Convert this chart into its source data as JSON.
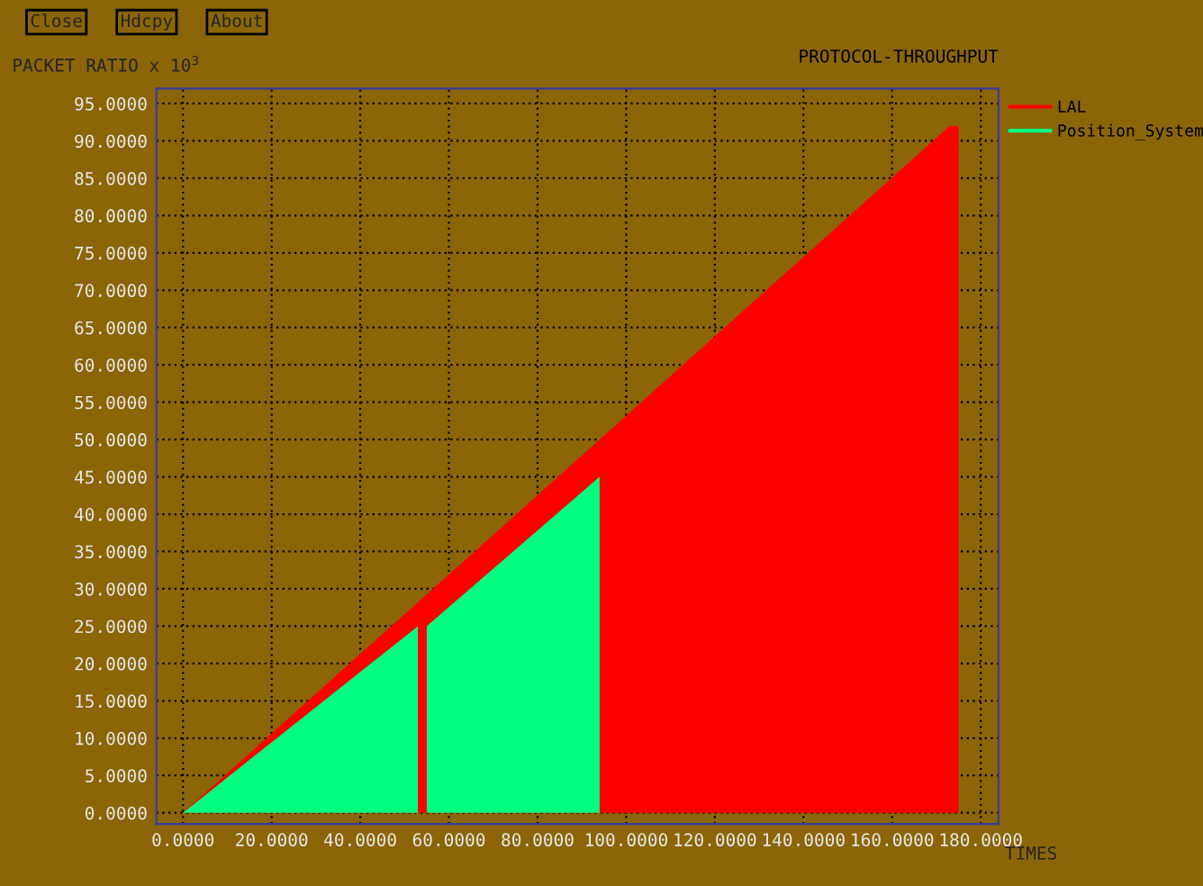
{
  "chart_data": {
    "type": "area",
    "title": "PROTOCOL-THROUGHPUT",
    "xlabel": "TIMES",
    "ylabel": "PACKET RATIO x 10$^{3}$",
    "annotations": [
      "Close",
      "Hdcpy",
      "About"
    ],
    "series": [
      {
        "name": "LAL",
        "color": "#ff0000",
        "x": [
          0,
          173,
          175,
          175
        ],
        "values": [
          0,
          92,
          92,
          0
        ]
      },
      {
        "name": "Position_System",
        "color": "#00ff80",
        "x": [
          0,
          53,
          53,
          55,
          55,
          94,
          94
        ],
        "values": [
          0,
          25,
          0,
          0,
          25,
          45,
          0
        ]
      }
    ],
    "xlim": [
      -6,
      184
    ],
    "ylim": [
      -1.5,
      97
    ],
    "xticks": [
      {
        "value": 0,
        "label": "0.0000"
      },
      {
        "value": 20,
        "label": "20.0000"
      },
      {
        "value": 40,
        "label": "40.0000"
      },
      {
        "value": 60,
        "label": "60.0000"
      },
      {
        "value": 80,
        "label": "80.0000"
      },
      {
        "value": 100,
        "label": "100.0000"
      },
      {
        "value": 120,
        "label": "120.0000"
      },
      {
        "value": 140,
        "label": "140.0000"
      },
      {
        "value": 160,
        "label": "160.0000"
      },
      {
        "value": 180,
        "label": "180.0000"
      }
    ],
    "yticks": [
      {
        "value": 0,
        "label": "0.0000"
      },
      {
        "value": 5,
        "label": "5.0000"
      },
      {
        "value": 10,
        "label": "10.0000"
      },
      {
        "value": 15,
        "label": "15.0000"
      },
      {
        "value": 20,
        "label": "20.0000"
      },
      {
        "value": 25,
        "label": "25.0000"
      },
      {
        "value": 30,
        "label": "30.0000"
      },
      {
        "value": 35,
        "label": "35.0000"
      },
      {
        "value": 40,
        "label": "40.0000"
      },
      {
        "value": 45,
        "label": "45.0000"
      },
      {
        "value": 50,
        "label": "50.0000"
      },
      {
        "value": 55,
        "label": "55.0000"
      },
      {
        "value": 60,
        "label": "60.0000"
      },
      {
        "value": 65,
        "label": "65.0000"
      },
      {
        "value": 70,
        "label": "70.0000"
      },
      {
        "value": 75,
        "label": "75.0000"
      },
      {
        "value": 80,
        "label": "80.0000"
      },
      {
        "value": 85,
        "label": "85.0000"
      },
      {
        "value": 90,
        "label": "90.0000"
      },
      {
        "value": 95,
        "label": "95.0000"
      }
    ],
    "grid": true,
    "legend": "top right"
  }
}
